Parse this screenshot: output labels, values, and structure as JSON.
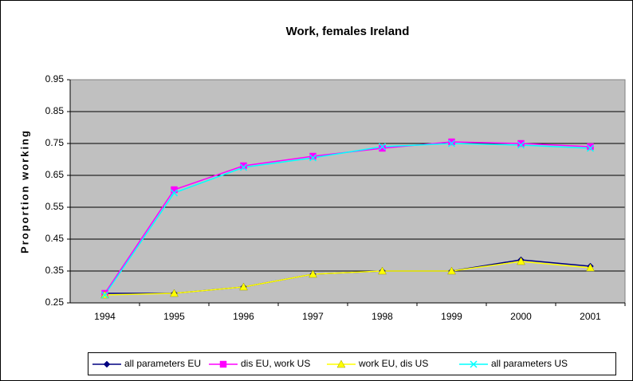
{
  "chart_data": {
    "type": "line",
    "title": "Work, females Ireland",
    "y_label": "Proportion working",
    "categories": [
      "1994",
      "1995",
      "1996",
      "1997",
      "1998",
      "1999",
      "2000",
      "2001"
    ],
    "series": [
      {
        "name": "all parameters EU",
        "color": "#000080",
        "marker": "diamond",
        "values": [
          0.28,
          0.28,
          0.3,
          0.34,
          0.35,
          0.35,
          0.385,
          0.365
        ]
      },
      {
        "name": "dis EU, work US",
        "color": "#ff00ff",
        "marker": "square",
        "values": [
          0.28,
          0.605,
          0.68,
          0.71,
          0.735,
          0.755,
          0.75,
          0.74
        ]
      },
      {
        "name": "work EU, dis US",
        "color": "#ffff00",
        "marker": "triangle",
        "values": [
          0.275,
          0.28,
          0.3,
          0.34,
          0.35,
          0.35,
          0.38,
          0.36
        ]
      },
      {
        "name": "all parameters US",
        "color": "#00ffff",
        "marker": "x",
        "values": [
          0.275,
          0.595,
          0.675,
          0.705,
          0.74,
          0.75,
          0.745,
          0.735
        ]
      }
    ],
    "ylim": [
      0.25,
      0.95
    ],
    "yticks": [
      0.25,
      0.35,
      0.45,
      0.55,
      0.65,
      0.75,
      0.85,
      0.95
    ],
    "grid": true,
    "legend": "bottom"
  }
}
